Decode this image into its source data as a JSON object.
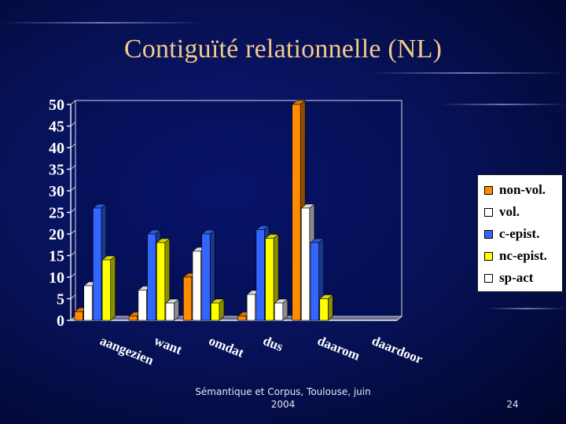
{
  "slide": {
    "title": "Contiguïté relationnelle (NL)",
    "footer_line1": "Sémantique et Corpus, Toulouse, juin",
    "footer_line2": "2004",
    "page_number": "24"
  },
  "chart_data": {
    "type": "bar",
    "style": "3d-clustered",
    "title": "",
    "xlabel": "",
    "ylabel": "",
    "ylim": [
      0,
      50
    ],
    "yticks": [
      "0",
      "5",
      "10",
      "15",
      "20",
      "25",
      "30",
      "35",
      "40",
      "45",
      "50"
    ],
    "grid": false,
    "legend_position": "right",
    "categories": [
      "aangezien",
      "want",
      "omdat",
      "dus",
      "daarom",
      "daardoor"
    ],
    "series": [
      {
        "name": "non-vol.",
        "color": "#ff8c00",
        "values": [
          2,
          1,
          10,
          1,
          50,
          0
        ]
      },
      {
        "name": "vol.",
        "color": "#ffffff",
        "values": [
          8,
          7,
          16,
          6,
          26,
          0
        ]
      },
      {
        "name": "c-epist.",
        "color": "#3366ff",
        "values": [
          26,
          20,
          20,
          21,
          18,
          0
        ]
      },
      {
        "name": "nc-epist.",
        "color": "#ffff00",
        "values": [
          14,
          18,
          4,
          19,
          5,
          0
        ]
      },
      {
        "name": "sp-act",
        "color": "#ffffff",
        "values": [
          0,
          4,
          0,
          4,
          0,
          0
        ]
      }
    ]
  }
}
